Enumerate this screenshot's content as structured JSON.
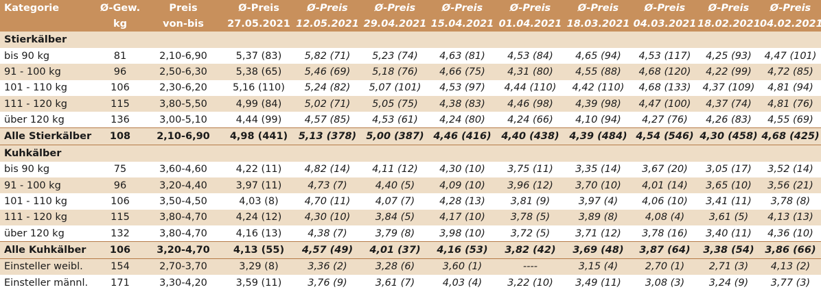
{
  "headers": [
    {
      "line1": "Kategorie",
      "line2": ""
    },
    {
      "line1": "Ø-Gew.",
      "line2": "kg"
    },
    {
      "line1": "Preis",
      "line2": "von-bis"
    },
    {
      "line1": "Ø-Preis",
      "line2": "27.05.2021"
    },
    {
      "line1": "Ø-Preis",
      "line2": "12.05.2021"
    },
    {
      "line1": "Ø-Preis",
      "line2": "29.04.2021"
    },
    {
      "line1": "Ø-Preis",
      "line2": "15.04.2021"
    },
    {
      "line1": "Ø-Preis",
      "line2": "01.04.2021"
    },
    {
      "line1": "Ø-Preis",
      "line2": "18.03.2021"
    },
    {
      "line1": "Ø-Preis",
      "line2": "04.03.2021"
    },
    {
      "line1": "Ø-Preis",
      "line2": "18.02.2021"
    },
    {
      "line1": "Ø-Preis",
      "line2": "04.02.2021"
    }
  ],
  "stier": {
    "title": "Stierkälber",
    "rows": [
      [
        "bis 90 kg",
        "81",
        "2,10-6,90",
        "5,37 (83)",
        "5,82 (71)",
        "5,23 (74)",
        "4,63 (81)",
        "4,53 (84)",
        "4,65 (94)",
        "4,53 (117)",
        "4,25 (93)",
        "4,47 (101)"
      ],
      [
        "91 - 100 kg",
        "96",
        "2,50-6,30",
        "5,38 (65)",
        "5,46 (69)",
        "5,18 (76)",
        "4,66 (75)",
        "4,31 (80)",
        "4,55 (88)",
        "4,68 (120)",
        "4,22 (99)",
        "4,72 (85)"
      ],
      [
        "101 - 110 kg",
        "106",
        "2,30-6,20",
        "5,16 (110)",
        "5,24 (82)",
        "5,07 (101)",
        "4,53 (97)",
        "4,44 (110)",
        "4,42 (110)",
        "4,68 (133)",
        "4,37 (109)",
        "4,81 (94)"
      ],
      [
        "111 - 120 kg",
        "115",
        "3,80-5,50",
        "4,99 (84)",
        "5,02 (71)",
        "5,05 (75)",
        "4,38 (83)",
        "4,46 (98)",
        "4,39 (98)",
        "4,47 (100)",
        "4,37 (74)",
        "4,81 (76)"
      ],
      [
        "über 120 kg",
        "136",
        "3,00-5,10",
        "4,44 (99)",
        "4,57 (85)",
        "4,53 (61)",
        "4,24 (80)",
        "4,24 (66)",
        "4,10 (94)",
        "4,27 (76)",
        "4,26 (83)",
        "4,55 (69)"
      ]
    ],
    "total": [
      "Alle Stierkälber",
      "108",
      "2,10-6,90",
      "4,98 (441)",
      "5,13 (378)",
      "5,00 (387)",
      "4,46 (416)",
      "4,40 (438)",
      "4,39 (484)",
      "4,54 (546)",
      "4,30 (458)",
      "4,68 (425)"
    ]
  },
  "kuh": {
    "title": "Kuhkälber",
    "rows": [
      [
        "bis 90 kg",
        "75",
        "3,60-4,60",
        "4,22 (11)",
        "4,82 (14)",
        "4,11 (12)",
        "4,30 (10)",
        "3,75 (11)",
        "3,35 (14)",
        "3,67 (20)",
        "3,05 (17)",
        "3,52 (14)"
      ],
      [
        "91 - 100 kg",
        "96",
        "3,20-4,40",
        "3,97 (11)",
        "4,73 (7)",
        "4,40 (5)",
        "4,09 (10)",
        "3,96 (12)",
        "3,70 (10)",
        "4,01 (14)",
        "3,65 (10)",
        "3,56 (21)"
      ],
      [
        "101 - 110 kg",
        "106",
        "3,50-4,50",
        "4,03 (8)",
        "4,70 (11)",
        "4,07 (7)",
        "4,28 (13)",
        "3,81 (9)",
        "3,97 (4)",
        "4,06 (10)",
        "3,41 (11)",
        "3,78 (8)"
      ],
      [
        "111 - 120 kg",
        "115",
        "3,80-4,70",
        "4,24 (12)",
        "4,30 (10)",
        "3,84 (5)",
        "4,17 (10)",
        "3,78 (5)",
        "3,89 (8)",
        "4,08 (4)",
        "3,61 (5)",
        "4,13 (13)"
      ],
      [
        "über 120 kg",
        "132",
        "3,80-4,70",
        "4,16 (13)",
        "4,38 (7)",
        "3,79 (8)",
        "3,98 (10)",
        "3,72 (5)",
        "3,71 (12)",
        "3,78 (16)",
        "3,40 (11)",
        "4,36 (10)"
      ]
    ],
    "total": [
      "Alle Kuhkälber",
      "106",
      "3,20-4,70",
      "4,13 (55)",
      "4,57 (49)",
      "4,01 (37)",
      "4,16 (53)",
      "3,82 (42)",
      "3,69 (48)",
      "3,87 (64)",
      "3,38 (54)",
      "3,86 (66)"
    ]
  },
  "einsteller": [
    [
      "Einsteller weibl.",
      "154",
      "2,70-3,70",
      "3,29 (8)",
      "3,36 (2)",
      "3,28 (6)",
      "3,60 (1)",
      "----",
      "3,15 (4)",
      "2,70 (1)",
      "2,71 (3)",
      "4,13 (2)"
    ],
    [
      "Einsteller männl.",
      "171",
      "3,30-4,20",
      "3,59 (11)",
      "3,76 (9)",
      "3,61 (7)",
      "4,03 (4)",
      "3,22 (10)",
      "3,49 (11)",
      "3,08 (3)",
      "3,24 (9)",
      "3,77 (3)"
    ]
  ]
}
